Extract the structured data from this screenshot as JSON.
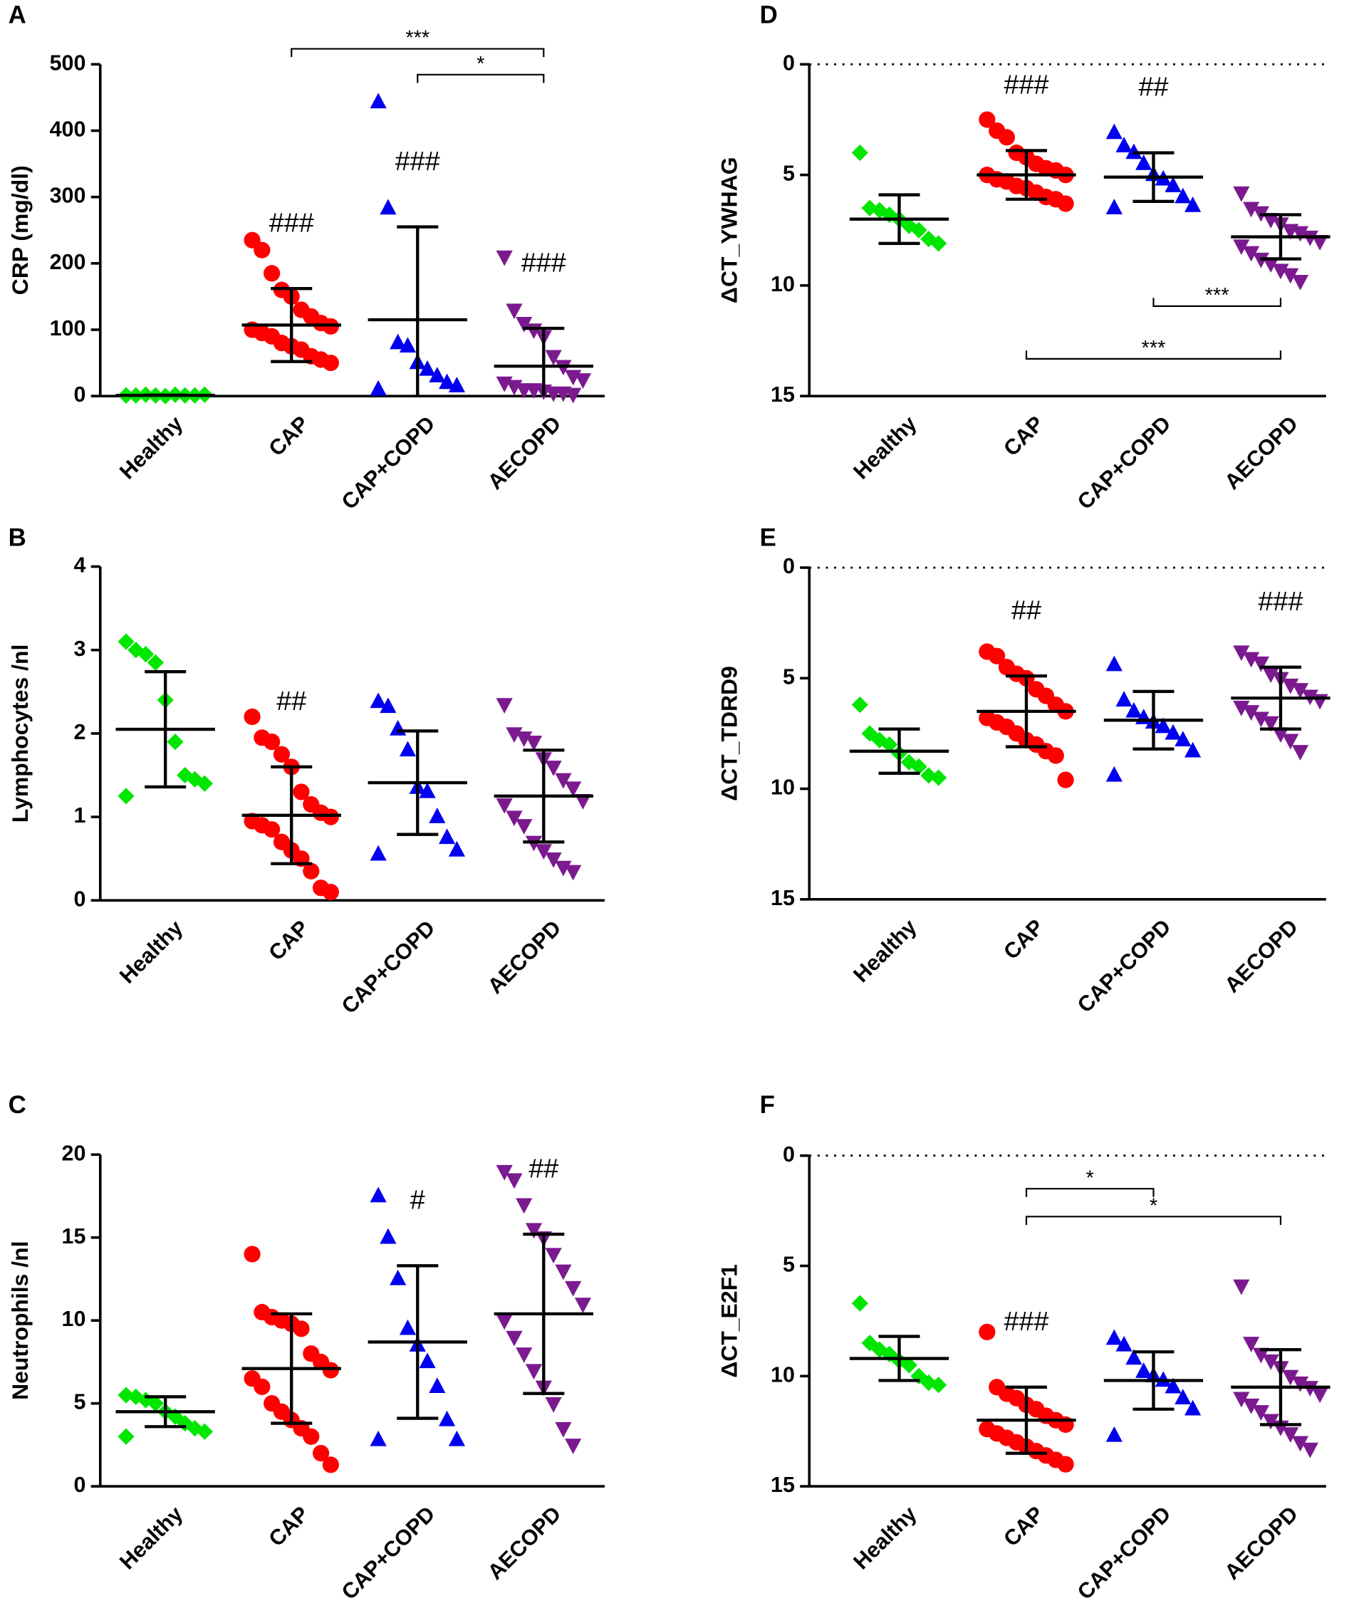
{
  "chart_data": [
    {
      "type": "scatter",
      "panel": "A",
      "ylabel": "CRP (mg/dl)",
      "categories": [
        "Healthy",
        "CAP",
        "CAP+COPD",
        "AECOPD"
      ],
      "colors": [
        "#00e600",
        "#ff0000",
        "#0000ee",
        "#7b1a8f"
      ],
      "markers": [
        "diamond",
        "circle",
        "triangle",
        "triangle-down"
      ],
      "points": [
        [
          1,
          1,
          2,
          1,
          0,
          2,
          1,
          1,
          2,
          1
        ],
        [
          235,
          220,
          185,
          160,
          150,
          130,
          120,
          110,
          105,
          100,
          95,
          90,
          80,
          75,
          70,
          60,
          55,
          50
        ],
        [
          443,
          283,
          80,
          75,
          50,
          40,
          30,
          20,
          15,
          10
        ],
        [
          210,
          130,
          110,
          100,
          90,
          60,
          45,
          30,
          25,
          20,
          15,
          10,
          10,
          8,
          5,
          5,
          3
        ]
      ],
      "mean": [
        1,
        107,
        115,
        45
      ],
      "sd": [
        0.5,
        55,
        140,
        57
      ],
      "ylim": [
        0,
        500
      ],
      "yticks": [
        0,
        100,
        200,
        300,
        400,
        500
      ],
      "inverted": false,
      "annotations": [
        {
          "category": 1,
          "text": "###"
        },
        {
          "category": 2,
          "text": "###"
        },
        {
          "category": 3,
          "text": "###"
        }
      ],
      "brackets": [
        {
          "from": 2,
          "to": 3,
          "text": "*"
        },
        {
          "from": 1,
          "to": 3,
          "text": "***"
        }
      ]
    },
    {
      "type": "scatter",
      "panel": "B",
      "ylabel": "Lymphocytes /nl",
      "categories": [
        "Healthy",
        "CAP",
        "CAP+COPD",
        "AECOPD"
      ],
      "colors": [
        "#00e600",
        "#ff0000",
        "#0000ee",
        "#7b1a8f"
      ],
      "markers": [
        "diamond",
        "circle",
        "triangle",
        "triangle-down"
      ],
      "points": [
        [
          3.1,
          3.0,
          2.95,
          2.85,
          2.4,
          1.9,
          1.5,
          1.45,
          1.4,
          1.25
        ],
        [
          2.2,
          1.95,
          1.9,
          1.75,
          1.6,
          1.3,
          1.15,
          1.05,
          1.0,
          0.95,
          0.9,
          0.85,
          0.7,
          0.6,
          0.5,
          0.35,
          0.15,
          0.1
        ],
        [
          2.38,
          2.32,
          2.05,
          1.8,
          1.35,
          1.3,
          1.0,
          0.75,
          0.6,
          0.55
        ],
        [
          2.35,
          2.0,
          1.95,
          1.9,
          1.7,
          1.6,
          1.45,
          1.35,
          1.2,
          1.15,
          1.0,
          0.9,
          0.7,
          0.6,
          0.5,
          0.4,
          0.35
        ]
      ],
      "mean": [
        2.05,
        1.02,
        1.41,
        1.25
      ],
      "sd": [
        0.69,
        0.58,
        0.62,
        0.55
      ],
      "ylim": [
        0,
        4
      ],
      "yticks": [
        0,
        1,
        2,
        3,
        4
      ],
      "inverted": false,
      "annotations": [
        {
          "category": 1,
          "text": "##"
        }
      ],
      "brackets": []
    },
    {
      "type": "scatter",
      "panel": "C",
      "ylabel": "Neutrophils /nl",
      "categories": [
        "Healthy",
        "CAP",
        "CAP+COPD",
        "AECOPD"
      ],
      "colors": [
        "#00e600",
        "#ff0000",
        "#0000ee",
        "#7b1a8f"
      ],
      "markers": [
        "diamond",
        "circle",
        "triangle",
        "triangle-down"
      ],
      "points": [
        [
          5.5,
          5.4,
          5.2,
          5.0,
          4.5,
          4.2,
          3.8,
          3.5,
          3.3,
          3.0
        ],
        [
          14,
          10.5,
          10.2,
          10,
          9.8,
          9.5,
          8,
          7.5,
          7,
          6.5,
          6,
          5,
          4.5,
          4,
          3.5,
          3,
          2,
          1.3
        ],
        [
          17.5,
          15,
          12.5,
          9.5,
          8.5,
          7.5,
          6,
          4,
          2.8,
          2.8
        ],
        [
          19,
          18.5,
          17,
          15.5,
          15,
          14,
          13,
          12,
          11,
          10,
          9,
          8,
          7,
          6,
          5,
          3.5,
          2.5
        ]
      ],
      "mean": [
        4.5,
        7.1,
        8.7,
        10.4
      ],
      "sd": [
        0.9,
        3.3,
        4.6,
        4.8
      ],
      "ylim": [
        0,
        20
      ],
      "yticks": [
        0,
        5,
        10,
        15,
        20
      ],
      "inverted": false,
      "annotations": [
        {
          "category": 2,
          "text": "#"
        },
        {
          "category": 3,
          "text": "##"
        }
      ],
      "brackets": []
    },
    {
      "type": "scatter",
      "panel": "D",
      "ylabel": "ΔCT_YWHAG",
      "categories": [
        "Healthy",
        "CAP",
        "CAP+COPD",
        "AECOPD"
      ],
      "colors": [
        "#00e600",
        "#ff0000",
        "#0000ee",
        "#7b1a8f"
      ],
      "markers": [
        "diamond",
        "circle",
        "triangle",
        "triangle-down"
      ],
      "points": [
        [
          4,
          6.5,
          6.6,
          6.8,
          7,
          7.3,
          7.5,
          7.9,
          8.1
        ],
        [
          2.5,
          3,
          3.3,
          4,
          4.2,
          4.5,
          4.7,
          4.8,
          5,
          5,
          5.2,
          5.3,
          5.5,
          5.6,
          5.8,
          6,
          6.1,
          6.3
        ],
        [
          3.1,
          3.7,
          4,
          4.5,
          5,
          5.2,
          5.5,
          6,
          6.4,
          6.5
        ],
        [
          5.8,
          6.5,
          6.7,
          7,
          7.2,
          7.5,
          7.6,
          7.8,
          8,
          8.2,
          8.5,
          8.8,
          9,
          9.3,
          9.5,
          9.8
        ]
      ],
      "mean": [
        7.0,
        5.0,
        5.1,
        7.8
      ],
      "sd": [
        1.1,
        1.1,
        1.1,
        1.0
      ],
      "ylim": [
        0,
        15
      ],
      "yticks": [
        0,
        5,
        10,
        15
      ],
      "inverted": true,
      "annotations": [
        {
          "category": 1,
          "text": "###"
        },
        {
          "category": 2,
          "text": "##"
        }
      ],
      "brackets": [
        {
          "from": 2,
          "to": 3,
          "text": "***"
        },
        {
          "from": 1,
          "to": 3,
          "text": "***"
        }
      ]
    },
    {
      "type": "scatter",
      "panel": "E",
      "ylabel": "ΔCT_TDRD9",
      "categories": [
        "Healthy",
        "CAP",
        "CAP+COPD",
        "AECOPD"
      ],
      "colors": [
        "#00e600",
        "#ff0000",
        "#0000ee",
        "#7b1a8f"
      ],
      "markers": [
        "diamond",
        "circle",
        "triangle",
        "triangle-down"
      ],
      "points": [
        [
          6.2,
          7.5,
          7.8,
          8.0,
          8.4,
          8.8,
          9.0,
          9.4,
          9.5
        ],
        [
          3.8,
          4.0,
          4.5,
          4.8,
          5.0,
          5.5,
          5.8,
          6.2,
          6.5,
          6.8,
          7.0,
          7.2,
          7.5,
          7.8,
          8.0,
          8.3,
          8.5,
          9.6
        ],
        [
          4.4,
          6.0,
          6.5,
          6.8,
          7.0,
          7.2,
          7.5,
          7.8,
          8.3,
          9.4
        ],
        [
          3.8,
          4.1,
          4.3,
          4.8,
          5.0,
          5.3,
          5.5,
          5.8,
          6.0,
          6.3,
          6.5,
          6.8,
          7.0,
          7.5,
          7.8,
          8.3
        ]
      ],
      "mean": [
        8.3,
        6.5,
        6.9,
        5.9
      ],
      "sd": [
        1.0,
        1.6,
        1.3,
        1.4
      ],
      "ylim": [
        0,
        15
      ],
      "yticks": [
        0,
        5,
        10,
        15
      ],
      "inverted": true,
      "annotations": [
        {
          "category": 1,
          "text": "##"
        },
        {
          "category": 3,
          "text": "###"
        }
      ],
      "brackets": []
    },
    {
      "type": "scatter",
      "panel": "F",
      "ylabel": "ΔCT_E2F1",
      "categories": [
        "Healthy",
        "CAP",
        "CAP+COPD",
        "AECOPD"
      ],
      "colors": [
        "#00e600",
        "#ff0000",
        "#0000ee",
        "#7b1a8f"
      ],
      "markers": [
        "diamond",
        "circle",
        "triangle",
        "triangle-down"
      ],
      "points": [
        [
          6.7,
          8.5,
          8.8,
          9.0,
          9.3,
          9.5,
          10.0,
          10.3,
          10.4
        ],
        [
          8.0,
          10.5,
          10.8,
          11,
          11.3,
          11.5,
          11.8,
          12,
          12.2,
          12.4,
          12.6,
          12.8,
          13,
          13.2,
          13.4,
          13.6,
          13.8,
          14.0
        ],
        [
          8.3,
          8.6,
          9.2,
          9.8,
          10,
          10.2,
          10.5,
          11,
          11.5,
          12.7
        ],
        [
          5.9,
          8.5,
          9,
          9.3,
          9.6,
          10,
          10.3,
          10.5,
          10.8,
          11,
          11.3,
          11.6,
          12,
          12.3,
          12.6,
          13,
          13.3
        ]
      ],
      "mean": [
        9.2,
        12.0,
        10.2,
        10.5
      ],
      "sd": [
        1.0,
        1.5,
        1.3,
        1.7
      ],
      "ylim": [
        0,
        15
      ],
      "yticks": [
        0,
        5,
        10,
        15
      ],
      "inverted": true,
      "annotations": [
        {
          "category": 1,
          "text": "###"
        }
      ],
      "brackets": [
        {
          "from": 1,
          "to": 2,
          "text": "*"
        },
        {
          "from": 1,
          "to": 3,
          "text": "*"
        }
      ]
    }
  ]
}
